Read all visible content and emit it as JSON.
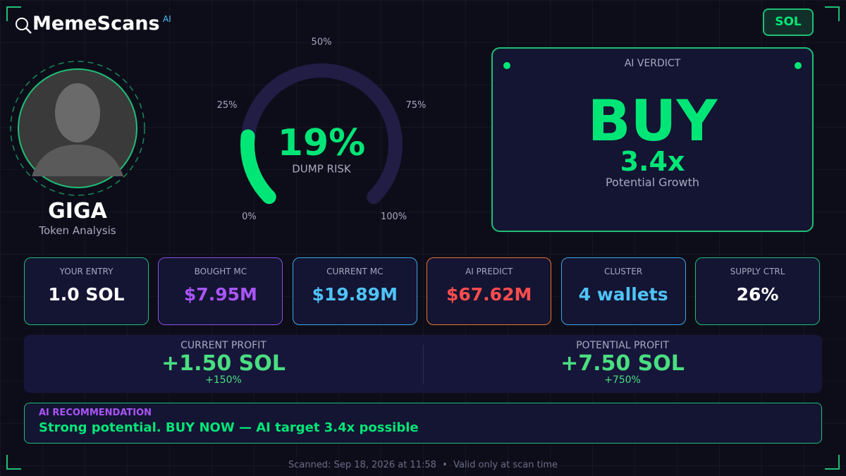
{
  "header": {
    "brand": "MemeScans",
    "brand_badge": "AI",
    "chain": "SOL"
  },
  "token": {
    "name": "GIGA",
    "subtitle": "Token Analysis"
  },
  "gauge": {
    "value": 19,
    "value_label": "19%",
    "label": "DUMP RISK",
    "lim": [
      0,
      100
    ],
    "ticks": [
      {
        "value": 0,
        "label": "0%"
      },
      {
        "value": 25,
        "label": "25%"
      },
      {
        "value": 50,
        "label": "50%"
      },
      {
        "value": 75,
        "label": "75%"
      },
      {
        "value": 100,
        "label": "100%"
      }
    ],
    "color": "#00e676",
    "track_color": "#221d45"
  },
  "verdict": {
    "title": "AI VERDICT",
    "action": "BUY",
    "multiplier": "3.4x",
    "caption": "Potential Growth"
  },
  "stats": [
    {
      "label": "YOUR ENTRY",
      "value": "1.0 SOL",
      "border": "#1fbf74",
      "color": "#ffffff"
    },
    {
      "label": "BOUGHT MC",
      "value": "$7.95M",
      "border": "#8b4fe0",
      "color": "#a855f7"
    },
    {
      "label": "CURRENT MC",
      "value": "$19.89M",
      "border": "#3aa8e0",
      "color": "#4fc3f7"
    },
    {
      "label": "AI PREDICT",
      "value": "$67.62M",
      "border": "#e8742a",
      "color": "#ff4d4d"
    },
    {
      "label": "CLUSTER",
      "value": "4 wallets",
      "border": "#3aa8e0",
      "color": "#4fc3f7"
    },
    {
      "label": "SUPPLY CTRL",
      "value": "26%",
      "border": "#1fbf74",
      "color": "#ffffff"
    }
  ],
  "profit": [
    {
      "label": "CURRENT PROFIT",
      "value": "+1.50 SOL",
      "percent": "+150%"
    },
    {
      "label": "POTENTIAL PROFIT",
      "value": "+7.50 SOL",
      "percent": "+750%"
    }
  ],
  "recommendation": {
    "title": "AI RECOMMENDATION",
    "text": "Strong potential. BUY NOW — AI target 3.4x possible"
  },
  "footer": "Scanned: Sep 18, 2026 at 11:58  •  Valid only at scan time"
}
